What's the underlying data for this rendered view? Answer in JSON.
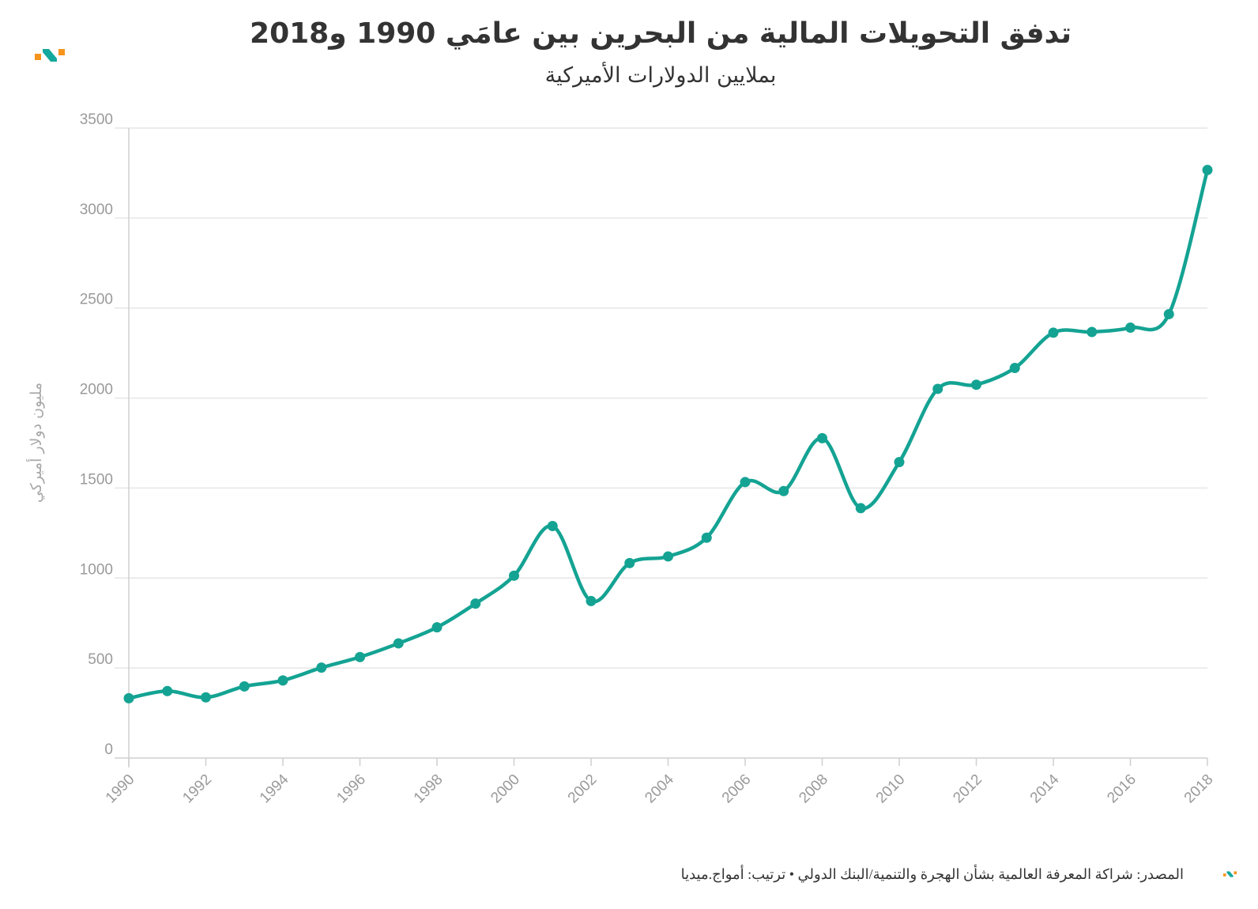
{
  "header": {
    "title": "تدفق التحويلات المالية من البحرين بين عامَي 1990 و2018",
    "subtitle": "بملايين الدولارات الأميركية"
  },
  "footer": {
    "source": "المصدر: شراكة المعرفة العالمية بشأن الهجرة والتنمية/البنك الدولي • ترتيب: أمواج.ميديا"
  },
  "logo": {
    "name": "amwaj-logo-icon",
    "color_orange": "#f7941d",
    "color_teal": "#13a89e"
  },
  "chart_data": {
    "type": "line",
    "title": "تدفق التحويلات المالية من البحرين بين عامَي 1990 و2018",
    "subtitle": "بملايين الدولارات الأميركية",
    "ylabel": "مليون دولار أميركي",
    "xlabel": "",
    "ylim": [
      0,
      3500
    ],
    "yticks": [
      0,
      500,
      1000,
      1500,
      2000,
      2500,
      3000,
      3500
    ],
    "xticks": [
      1990,
      1992,
      1994,
      1996,
      1998,
      2000,
      2002,
      2004,
      2006,
      2008,
      2010,
      2012,
      2014,
      2016,
      2018
    ],
    "grid": true,
    "line_color": "#14a393",
    "series": [
      {
        "name": "التحويلات",
        "x": [
          1990,
          1991,
          1992,
          1993,
          1994,
          1995,
          1996,
          1997,
          1998,
          1999,
          2000,
          2001,
          2002,
          2003,
          2004,
          2005,
          2006,
          2007,
          2008,
          2009,
          2010,
          2011,
          2012,
          2013,
          2014,
          2015,
          2016,
          2017,
          2018
        ],
        "values": [
          332,
          372,
          337,
          398,
          431,
          502,
          561,
          637,
          726,
          858,
          1013,
          1289,
          872,
          1083,
          1120,
          1224,
          1533,
          1483,
          1777,
          1388,
          1644,
          2051,
          2074,
          2167,
          2363,
          2367,
          2391,
          2466,
          3267
        ]
      }
    ]
  }
}
